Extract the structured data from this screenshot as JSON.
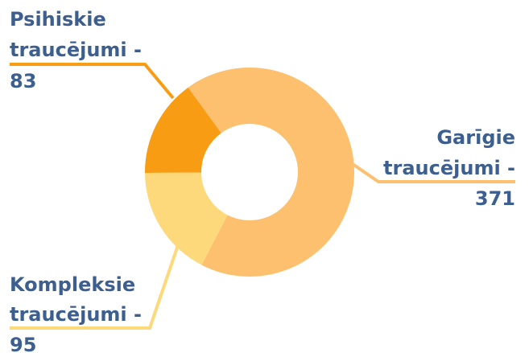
{
  "chart_data": {
    "type": "pie",
    "categories": [
      "Garīgie traucējumi -",
      "Kompleksie traucējumi -",
      "Psihiskie traucējumi -"
    ],
    "values": [
      371,
      95,
      83
    ],
    "colors": [
      "#fcc06e",
      "#fdd97c",
      "#f89c14"
    ]
  }
}
